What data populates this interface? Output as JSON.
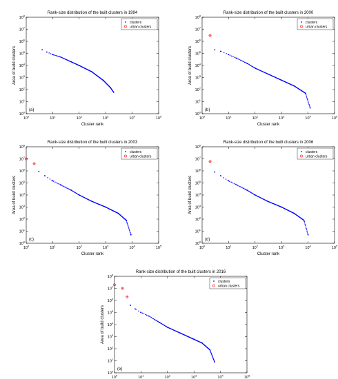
{
  "figure": {
    "panel_count": 5
  },
  "chart_data": [
    {
      "type": "scatter",
      "panel_label": "(a)",
      "title": "Rank-size distribution of the built clusters in 1994",
      "xlabel": "Cluster rank",
      "ylabel": "Area of build clusters",
      "xscale": "log",
      "yscale": "log",
      "xlim": [
        1,
        100000
      ],
      "ylim": [
        1,
        100000000
      ],
      "xticks": [
        1,
        10,
        100,
        1000,
        10000,
        100000
      ],
      "yticks": [
        1,
        10,
        100,
        1000,
        10000,
        100000,
        1000000,
        10000000,
        100000000
      ],
      "legend": {
        "position": "top-right",
        "entries": [
          "clusters",
          "urban clusters"
        ]
      },
      "series": [
        {
          "name": "clusters",
          "marker": "dot",
          "color": "#0000ff",
          "points": [
            [
              4,
              200000
            ],
            [
              6,
              130000
            ],
            [
              10,
              80000
            ],
            [
              20,
              50000
            ],
            [
              50,
              20000
            ],
            [
              100,
              10000
            ],
            [
              300,
              3000
            ],
            [
              800,
              600
            ],
            [
              1500,
              150
            ],
            [
              2000,
              60
            ]
          ]
        },
        {
          "name": "urban clusters",
          "marker": "circle",
          "color": "#ff0000",
          "points": []
        }
      ]
    },
    {
      "type": "scatter",
      "panel_label": "(b)",
      "title": "Rank-size distribution of the built clusters in 2000",
      "xlabel": "Cluster rank",
      "ylabel": "Area of build clusters",
      "xscale": "log",
      "yscale": "log",
      "xlim": [
        1,
        100000
      ],
      "ylim": [
        1,
        100000000
      ],
      "xticks": [
        1,
        10,
        100,
        1000,
        10000,
        100000
      ],
      "yticks": [
        1,
        10,
        100,
        1000,
        10000,
        100000,
        1000000,
        10000000,
        100000000
      ],
      "legend": {
        "position": "top-right",
        "entries": [
          "clusters",
          "urban clusters"
        ]
      },
      "series": [
        {
          "name": "clusters",
          "marker": "dot",
          "color": "#0000ff",
          "points": [
            [
              3,
              200000
            ],
            [
              5,
              150000
            ],
            [
              10,
              80000
            ],
            [
              20,
              40000
            ],
            [
              50,
              15000
            ],
            [
              100,
              6000
            ],
            [
              300,
              2000
            ],
            [
              1000,
              600
            ],
            [
              3000,
              200
            ],
            [
              8000,
              50
            ],
            [
              12000,
              3
            ]
          ]
        },
        {
          "name": "urban clusters",
          "marker": "circle",
          "color": "#ff0000",
          "points": [
            [
              2,
              3000000
            ]
          ]
        }
      ]
    },
    {
      "type": "scatter",
      "panel_label": "(c)",
      "title": "Rank-size distribution of the built clusters in 2003",
      "xlabel": "Cluster rank",
      "ylabel": "Area of build clusters",
      "xscale": "log",
      "yscale": "log",
      "xlim": [
        1,
        100000
      ],
      "ylim": [
        1,
        100000000
      ],
      "xticks": [
        1,
        10,
        100,
        1000,
        10000,
        100000
      ],
      "yticks": [
        1,
        10,
        100,
        1000,
        10000,
        100000,
        1000000,
        10000000,
        100000000
      ],
      "legend": {
        "position": "top-right",
        "entries": [
          "clusters",
          "urban clusters"
        ]
      },
      "series": [
        {
          "name": "clusters",
          "marker": "dot",
          "color": "#0000ff",
          "points": [
            [
              3,
              900000
            ],
            [
              5,
              400000
            ],
            [
              10,
              150000
            ],
            [
              20,
              70000
            ],
            [
              50,
              25000
            ],
            [
              100,
              10000
            ],
            [
              300,
              3000
            ],
            [
              1000,
              1000
            ],
            [
              3000,
              300
            ],
            [
              6000,
              80
            ],
            [
              9000,
              5
            ]
          ]
        },
        {
          "name": "urban clusters",
          "marker": "circle",
          "color": "#ff0000",
          "points": [
            [
              1,
              10000000
            ],
            [
              2,
              4000000
            ]
          ]
        }
      ]
    },
    {
      "type": "scatter",
      "panel_label": "(d)",
      "title": "Rank-size distribution of the built clusters in 2006",
      "xlabel": "Cluster rank",
      "ylabel": "Area of build clusters",
      "xscale": "log",
      "yscale": "log",
      "xlim": [
        1,
        100000
      ],
      "ylim": [
        1,
        100000000
      ],
      "xticks": [
        1,
        10,
        100,
        1000,
        10000,
        100000
      ],
      "yticks": [
        1,
        10,
        100,
        1000,
        10000,
        100000,
        1000000,
        10000000,
        100000000
      ],
      "legend": {
        "position": "top-right",
        "entries": [
          "clusters",
          "urban clusters"
        ]
      },
      "series": [
        {
          "name": "clusters",
          "marker": "dot",
          "color": "#0000ff",
          "points": [
            [
              3,
              800000
            ],
            [
              5,
              400000
            ],
            [
              10,
              150000
            ],
            [
              20,
              70000
            ],
            [
              50,
              25000
            ],
            [
              100,
              10000
            ],
            [
              300,
              3000
            ],
            [
              1000,
              1000
            ],
            [
              3000,
              300
            ],
            [
              7000,
              80
            ],
            [
              10000,
              5
            ]
          ]
        },
        {
          "name": "urban clusters",
          "marker": "circle",
          "color": "#ff0000",
          "points": [
            [
              2,
              6000000
            ]
          ]
        }
      ]
    },
    {
      "type": "scatter",
      "panel_label": "(e)",
      "title": "Rank-size distribution of the built clusters in 2016",
      "xlabel": "Cluster rank",
      "ylabel": "Area of build clusters",
      "xscale": "log",
      "yscale": "log",
      "xlim": [
        1,
        100000
      ],
      "ylim": [
        1,
        100000000
      ],
      "xticks": [
        1,
        10,
        100,
        1000,
        10000,
        100000
      ],
      "yticks": [
        1,
        10,
        100,
        1000,
        10000,
        100000,
        1000000,
        10000000,
        100000000
      ],
      "legend": {
        "position": "top-right",
        "entries": [
          "clusters",
          "urban clusters"
        ]
      },
      "series": [
        {
          "name": "clusters",
          "marker": "dot",
          "color": "#0000ff",
          "points": [
            [
              4,
              400000
            ],
            [
              6,
              200000
            ],
            [
              10,
              100000
            ],
            [
              20,
              50000
            ],
            [
              50,
              15000
            ],
            [
              100,
              6000
            ],
            [
              300,
              2000
            ],
            [
              1000,
              600
            ],
            [
              2000,
              300
            ],
            [
              4000,
              80
            ],
            [
              6000,
              8
            ]
          ]
        },
        {
          "name": "urban clusters",
          "marker": "circle",
          "color": "#ff0000",
          "points": [
            [
              1,
              20000000
            ],
            [
              2,
              10000000
            ],
            [
              3,
              2000000
            ]
          ]
        }
      ]
    }
  ]
}
